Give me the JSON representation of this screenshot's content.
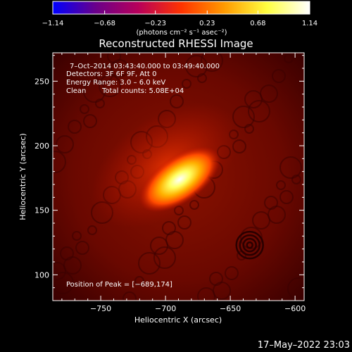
{
  "colors": {
    "background": "#000000",
    "foreground": "#ffffff",
    "colormap": [
      "#0000ff",
      "#6a008a",
      "#b8005a",
      "#ff3300",
      "#ff9a00",
      "#ffff40",
      "#ffffff"
    ]
  },
  "chart_data": {
    "type": "heatmap",
    "title": "Reconstructed RHESSI Image",
    "xlabel": "Heliocentric X (arcsec)",
    "ylabel": "Heliocentric Y (arcsec)",
    "xlim": [
      -787,
      -593
    ],
    "ylim": [
      80,
      272
    ],
    "x_ticks": [
      -750,
      -700,
      -650,
      -600
    ],
    "y_ticks": [
      100,
      150,
      200,
      250
    ],
    "x_tick_labels": [
      "−750",
      "−700",
      "−650",
      "−600"
    ],
    "y_tick_labels": [
      "100",
      "150",
      "200",
      "250"
    ],
    "peak": {
      "x": -689,
      "y": 174
    },
    "source": {
      "x": -689,
      "y": 174,
      "major_axis": 36,
      "minor_axis": 18,
      "angle_deg": -35,
      "halo": {
        "x": -700,
        "y": 185,
        "size": 38
      }
    },
    "colorbar": {
      "min": -1.14,
      "max": 1.14,
      "ticks": [
        -1.14,
        -0.68,
        -0.23,
        0.23,
        0.68,
        1.14
      ],
      "tick_labels": [
        "−1.14",
        "−0.68",
        "−0.23",
        "0.23",
        "0.68",
        "1.14"
      ],
      "unit_label": "(photons cm⁻² s⁻¹ asec⁻²)"
    },
    "annotations": {
      "time": "7–Oct–2014 03:43:40.000 to 03:49:40.000",
      "detectors": "Detectors: 3F 6F 9F, Att 0",
      "energy": "Energy Range: 3.0 – 6.0 keV",
      "method": "Clean",
      "counts": "Total counts: 5.08E+04",
      "peak_position": "Position of Peak = [−689,174]"
    }
  },
  "footer": {
    "date": "17–May–2022 23:03"
  }
}
